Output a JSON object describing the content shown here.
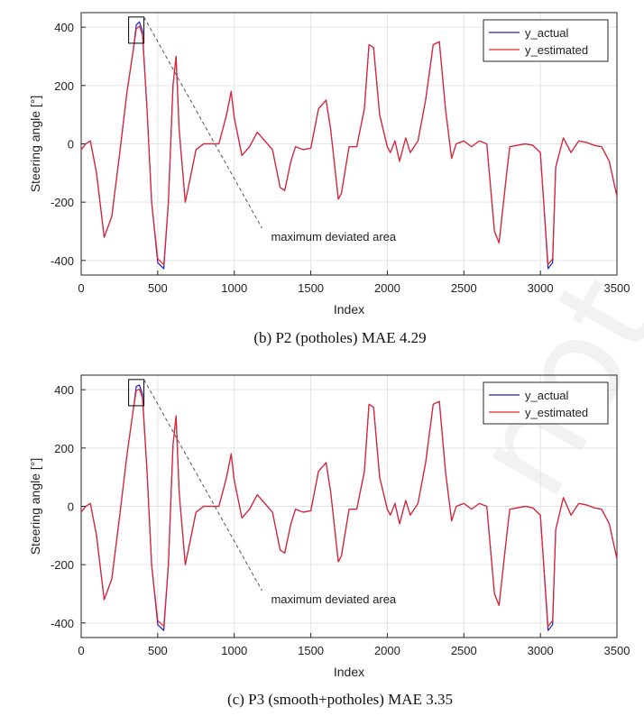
{
  "watermark": {
    "text": "not",
    "color": "#f0f0f0"
  },
  "colors": {
    "actual": "#1f1fbf",
    "estimated": "#e8242a",
    "box": "#000000",
    "annotation_line": "#555555"
  },
  "chart_data": [
    {
      "type": "line",
      "caption": "(b) P2 (potholes) MAE 4.29",
      "xlabel": "Index",
      "ylabel": "Steering angle [°]",
      "xlim": [
        0,
        3500
      ],
      "ylim": [
        -450,
        450
      ],
      "xticks": [
        0,
        500,
        1000,
        1500,
        2000,
        2500,
        3000,
        3500
      ],
      "yticks": [
        -400,
        -200,
        0,
        200,
        400
      ],
      "grid": true,
      "legend_position": "top-right",
      "annotation": {
        "text": "maximum deviated area",
        "box_x": [
          310,
          410
        ],
        "box_y": [
          345,
          435
        ],
        "text_x": 1240,
        "text_y": -320
      },
      "series": [
        {
          "name": "y_actual",
          "color": "#1f1fbf",
          "values_ref": "shape",
          "peak_adjust": 8
        },
        {
          "name": "y_estimated",
          "color": "#e8242a",
          "values_ref": "shape",
          "peak_adjust": -6
        }
      ],
      "x": [
        0,
        30,
        60,
        100,
        150,
        200,
        250,
        300,
        340,
        360,
        380,
        400,
        430,
        460,
        500,
        540,
        570,
        600,
        620,
        640,
        680,
        700,
        750,
        800,
        900,
        950,
        980,
        1000,
        1050,
        1100,
        1150,
        1200,
        1250,
        1300,
        1330,
        1370,
        1400,
        1450,
        1500,
        1550,
        1600,
        1630,
        1680,
        1700,
        1750,
        1800,
        1850,
        1880,
        1910,
        1950,
        2000,
        2020,
        2050,
        2080,
        2120,
        2150,
        2200,
        2250,
        2300,
        2340,
        2380,
        2420,
        2450,
        2500,
        2550,
        2600,
        2650,
        2700,
        2730,
        2780,
        2800,
        2850,
        2900,
        2950,
        3000,
        3050,
        3080,
        3100,
        3150,
        3200,
        3250,
        3300,
        3350,
        3400,
        3450,
        3500
      ],
      "y": [
        -20,
        0,
        10,
        -100,
        -320,
        -250,
        -40,
        180,
        320,
        400,
        410,
        380,
        120,
        -200,
        -400,
        -420,
        -200,
        200,
        300,
        50,
        -200,
        -150,
        -20,
        0,
        0,
        100,
        180,
        90,
        -40,
        -10,
        40,
        10,
        -20,
        -150,
        -160,
        -60,
        -10,
        -20,
        -15,
        120,
        150,
        50,
        -190,
        -170,
        -10,
        -10,
        120,
        340,
        330,
        100,
        -10,
        -30,
        10,
        -60,
        20,
        -30,
        10,
        150,
        340,
        350,
        120,
        -50,
        0,
        10,
        -10,
        10,
        0,
        -300,
        -340,
        -100,
        -10,
        -5,
        0,
        -5,
        -30,
        -420,
        -400,
        -80,
        20,
        -30,
        10,
        5,
        -5,
        -10,
        -60,
        -180
      ]
    },
    {
      "type": "line",
      "caption": "(c) P3 (smooth+potholes) MAE 3.35",
      "xlabel": "Index",
      "ylabel": "Steering angle [°]",
      "xlim": [
        0,
        3500
      ],
      "ylim": [
        -450,
        450
      ],
      "xticks": [
        0,
        500,
        1000,
        1500,
        2000,
        2500,
        3000,
        3500
      ],
      "yticks": [
        -400,
        -200,
        0,
        200,
        400
      ],
      "grid": true,
      "legend_position": "top-right",
      "annotation": {
        "text": "maximum deviated area",
        "box_x": [
          310,
          410
        ],
        "box_y": [
          345,
          435
        ],
        "text_x": 1240,
        "text_y": -320
      },
      "series": [
        {
          "name": "y_actual",
          "color": "#1f1fbf",
          "values_ref": "shape",
          "peak_adjust": 6
        },
        {
          "name": "y_estimated",
          "color": "#e8242a",
          "values_ref": "shape",
          "peak_adjust": -8
        }
      ],
      "x": [
        0,
        30,
        60,
        100,
        150,
        200,
        250,
        300,
        340,
        360,
        380,
        400,
        430,
        460,
        500,
        540,
        570,
        600,
        620,
        640,
        680,
        700,
        750,
        800,
        900,
        950,
        980,
        1000,
        1050,
        1100,
        1150,
        1200,
        1250,
        1300,
        1330,
        1370,
        1400,
        1450,
        1500,
        1550,
        1600,
        1630,
        1680,
        1700,
        1750,
        1800,
        1850,
        1880,
        1910,
        1950,
        2000,
        2020,
        2050,
        2080,
        2120,
        2150,
        2200,
        2250,
        2300,
        2340,
        2380,
        2420,
        2450,
        2500,
        2550,
        2600,
        2650,
        2700,
        2730,
        2780,
        2800,
        2850,
        2900,
        2950,
        3000,
        3050,
        3080,
        3100,
        3150,
        3200,
        3250,
        3300,
        3350,
        3400,
        3450,
        3500
      ],
      "y": [
        -20,
        0,
        10,
        -100,
        -320,
        -250,
        -40,
        180,
        330,
        405,
        410,
        380,
        120,
        -200,
        -400,
        -420,
        -200,
        210,
        310,
        50,
        -200,
        -150,
        -20,
        0,
        0,
        100,
        180,
        90,
        -40,
        -10,
        40,
        10,
        -20,
        -150,
        -160,
        -60,
        -10,
        -20,
        -15,
        120,
        150,
        50,
        -190,
        -170,
        -10,
        -10,
        120,
        350,
        340,
        100,
        -10,
        -30,
        10,
        -60,
        20,
        -30,
        10,
        150,
        350,
        360,
        120,
        -50,
        0,
        10,
        -10,
        10,
        0,
        -300,
        -340,
        -100,
        -10,
        -5,
        0,
        -5,
        -30,
        -420,
        -400,
        -80,
        30,
        -30,
        10,
        5,
        -5,
        -10,
        -60,
        -180
      ]
    }
  ]
}
